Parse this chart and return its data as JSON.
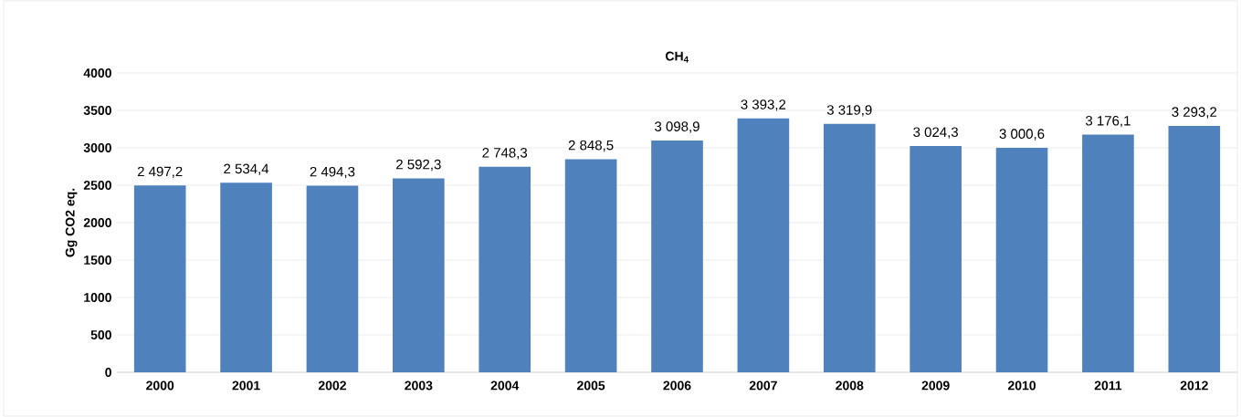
{
  "chart_data": {
    "type": "bar",
    "title": "CH$_{4}$",
    "ylabel": "Gg CO2 eq.",
    "categories": [
      "2000",
      "2001",
      "2002",
      "2003",
      "2004",
      "2005",
      "2006",
      "2007",
      "2008",
      "2009",
      "2010",
      "2011",
      "2012"
    ],
    "values": [
      2497.2,
      2534.4,
      2494.3,
      2592.3,
      2748.3,
      2848.5,
      3098.9,
      3393.2,
      3319.9,
      3024.3,
      3000.6,
      3176.1,
      3293.2
    ],
    "value_labels": [
      "2 497,2",
      "2 534,4",
      "2 494,3",
      "2 592,3",
      "2 748,3",
      "2 848,5",
      "3 098,9",
      "3 393,2",
      "3 319,9",
      "3 024,3",
      "3 000,6",
      "3 176,1",
      "3 293,2"
    ],
    "color": "#4f81bd",
    "ylim": [
      0,
      4000
    ],
    "yticks": [
      0,
      500,
      1000,
      1500,
      2000,
      2500,
      3000,
      3500,
      4000
    ],
    "grid": "y"
  }
}
